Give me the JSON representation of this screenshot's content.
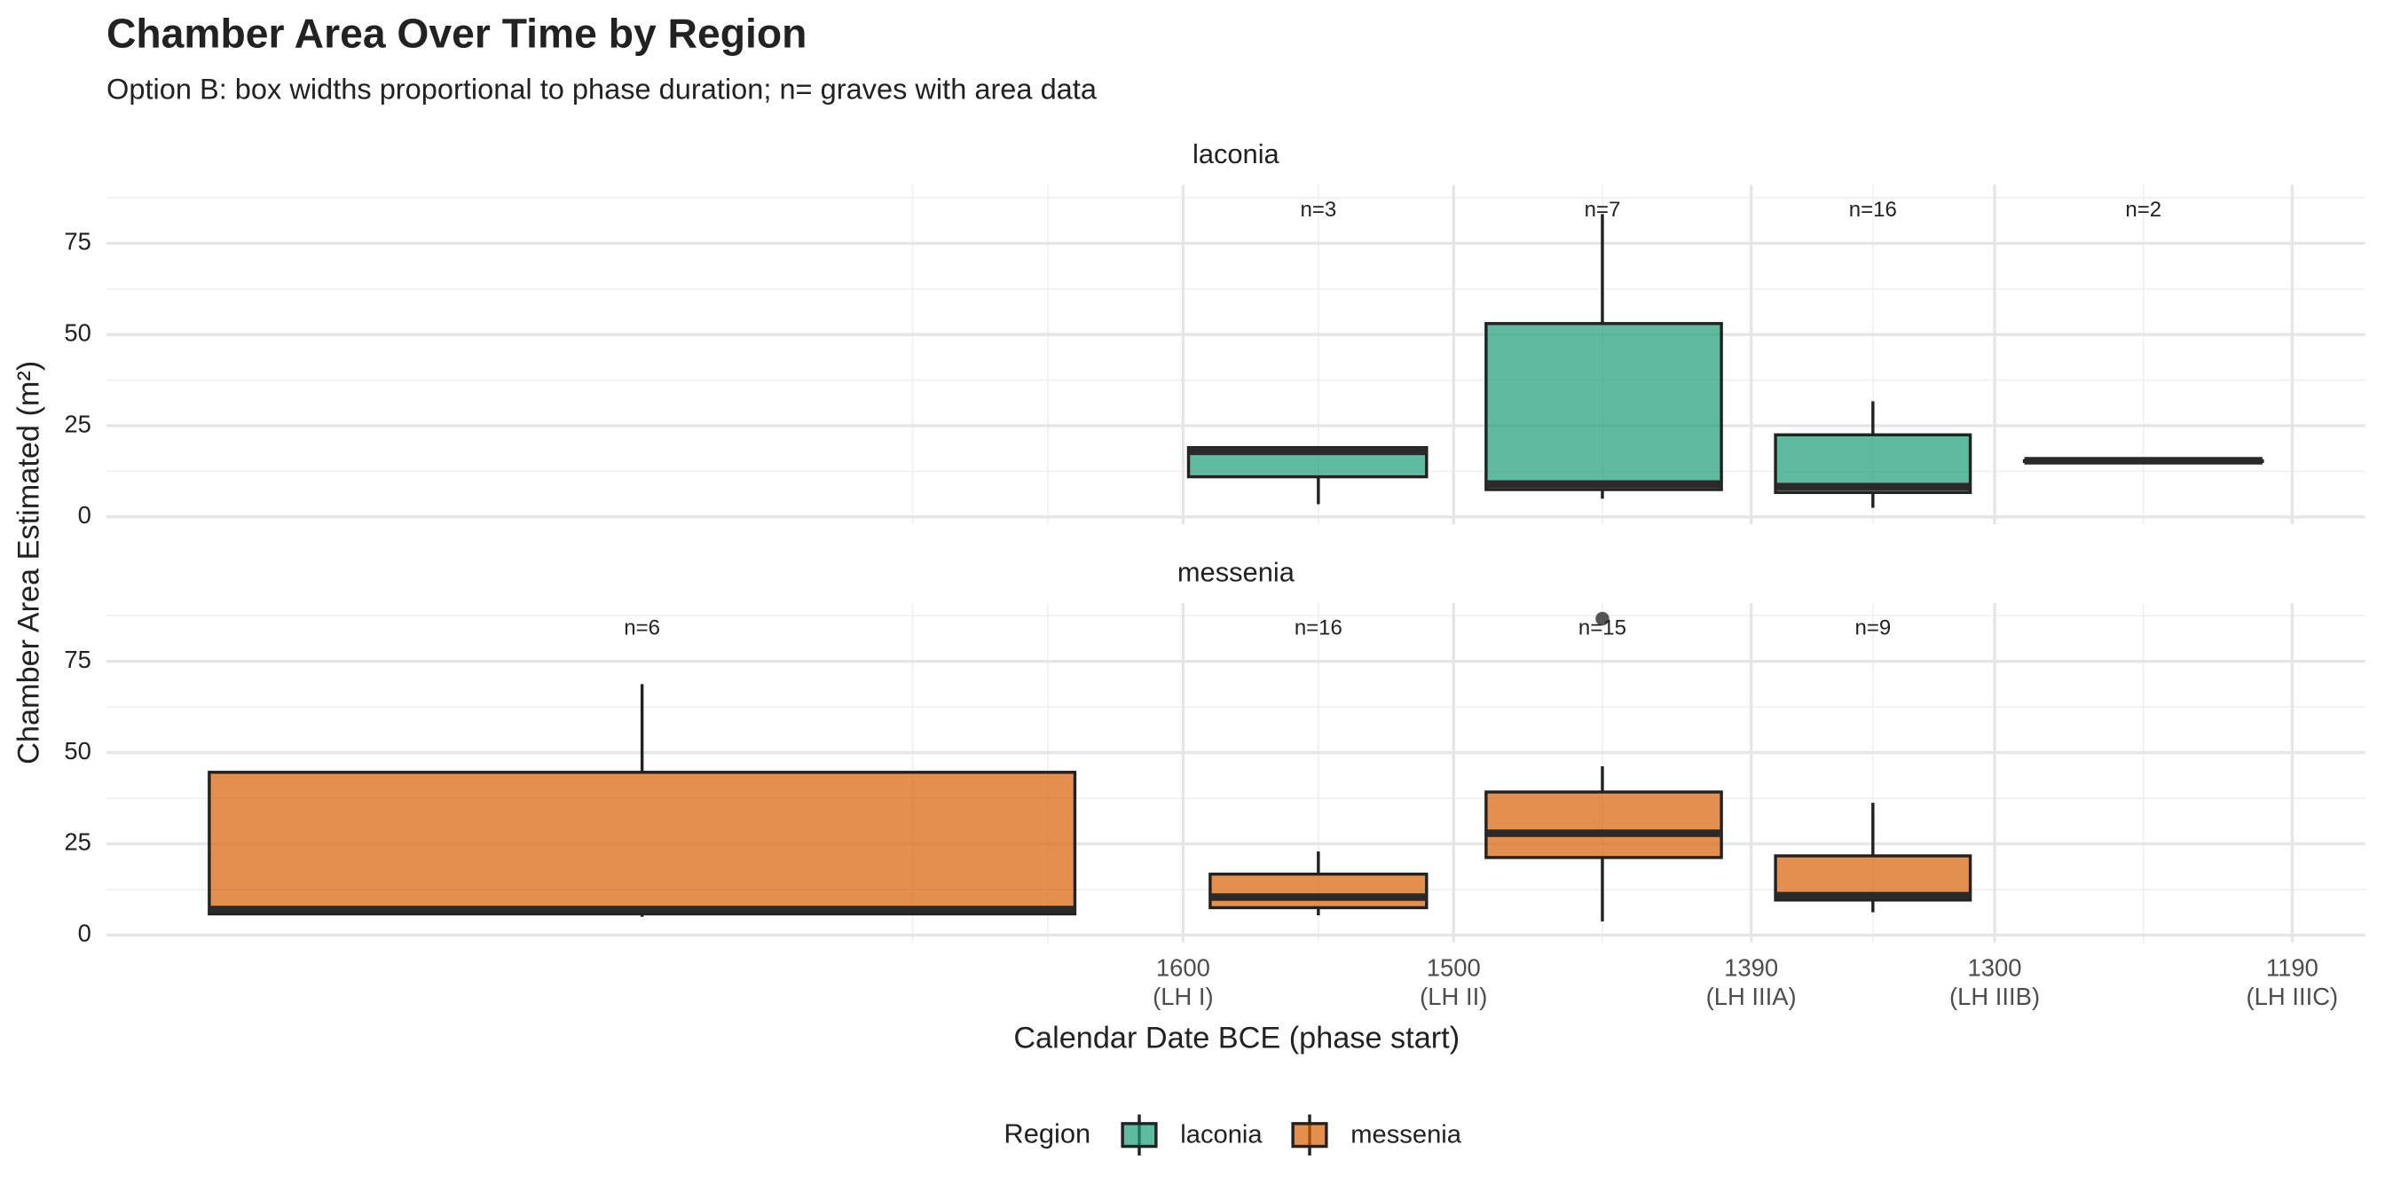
{
  "chart_data": {
    "type": "box",
    "title": "Chamber Area Over Time by Region",
    "subtitle": "Option B: box widths proportional to phase duration; n= graves with area data",
    "x_label": "Calendar Date BCE (phase start)",
    "y_label": "Chamber Area Estimated (m²)",
    "xlim": [
      1998,
      1163
    ],
    "xticks": [
      {
        "value": 1600,
        "label": "1600\n(LH I)"
      },
      {
        "value": 1500,
        "label": "1500\n(LH II)"
      },
      {
        "value": 1390,
        "label": "1390\n(LH IIIA)"
      },
      {
        "value": 1300,
        "label": "1300\n(LH IIIB)"
      },
      {
        "value": 1190,
        "label": "1190\n(LH IIIC)"
      }
    ],
    "xminor": [
      1700,
      1650,
      1550,
      1445,
      1345,
      1245
    ],
    "ylim": [
      -2,
      91
    ],
    "yticks": [
      0,
      25,
      50,
      75
    ],
    "yminor": [
      12.5,
      37.5,
      62.5,
      87.5
    ],
    "grid": true,
    "legend_title": "Region",
    "legend": "bottom",
    "series": [
      {
        "name": "laconia",
        "color": "#1b9e77"
      },
      {
        "name": "messenia",
        "color": "#d95f02"
      }
    ],
    "panels": [
      {
        "name": "laconia",
        "boxes": [
          {
            "x": 1550,
            "x_range": [
              1598,
              1510
            ],
            "low": 3.5,
            "q1": 11,
            "median": 18,
            "q3": 19,
            "high": 19,
            "outliers": [],
            "label": "n=3"
          },
          {
            "x": 1445,
            "x_range": [
              1488,
              1401
            ],
            "low": 5,
            "q1": 7.5,
            "median": 9,
            "q3": 53,
            "high": 83,
            "outliers": [],
            "label": "n=7"
          },
          {
            "x": 1345,
            "x_range": [
              1381,
              1309
            ],
            "low": 2.5,
            "q1": 6.7,
            "median": 8.3,
            "q3": 22.5,
            "high": 31.7,
            "outliers": [],
            "label": "n=16"
          },
          {
            "x": 1245,
            "x_range": [
              1289,
              1201
            ],
            "low": 15.4,
            "q1": 15.4,
            "median": 15.4,
            "q3": 15.4,
            "high": 15.4,
            "outliers": [],
            "label": "n=2"
          }
        ]
      },
      {
        "name": "messenia",
        "boxes": [
          {
            "x": 1800,
            "x_range": [
              1960,
              1640
            ],
            "low": 5,
            "q1": 5.8,
            "median": 7,
            "q3": 44.6,
            "high": 68.75,
            "outliers": [],
            "label": "n=6"
          },
          {
            "x": 1550,
            "x_range": [
              1590,
              1510
            ],
            "low": 5.4,
            "q1": 7.5,
            "median": 10.4,
            "q3": 16.7,
            "high": 22.9,
            "outliers": [],
            "label": "n=16"
          },
          {
            "x": 1445,
            "x_range": [
              1488,
              1401
            ],
            "low": 3.75,
            "q1": 21.25,
            "median": 27.9,
            "q3": 39.2,
            "high": 46.25,
            "outliers": [
              86.7
            ],
            "label": "n=15"
          },
          {
            "x": 1345,
            "x_range": [
              1381,
              1309
            ],
            "low": 6.25,
            "q1": 9.6,
            "median": 10.8,
            "q3": 21.7,
            "high": 36.25,
            "outliers": [],
            "label": "n=9"
          }
        ]
      }
    ]
  }
}
